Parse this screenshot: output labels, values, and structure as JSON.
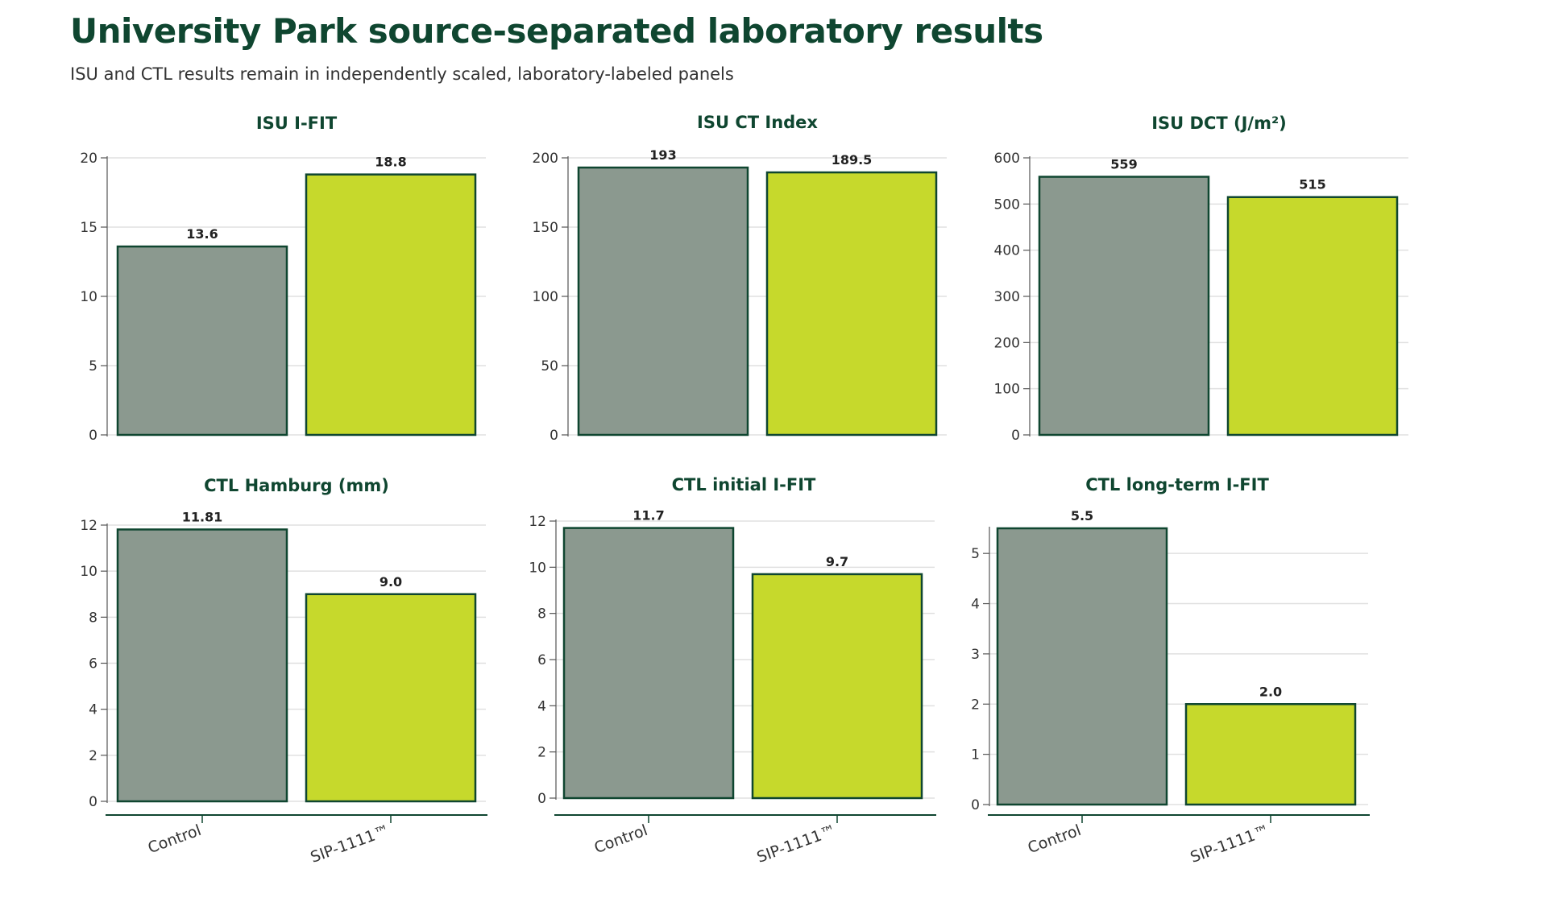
{
  "title": "University Park source-separated laboratory results",
  "subtitle": "ISU and CTL results remain in independently scaled, laboratory-labeled panels",
  "colors": {
    "control": "#8b998f",
    "sip": "#c6d92c",
    "outline": "#0f4630",
    "grid": "#e0e0e0",
    "title": "#0f4630"
  },
  "chart_data": [
    {
      "type": "bar",
      "title": "ISU I-FIT",
      "categories": [
        "Control",
        "SIP-1111™"
      ],
      "values": [
        13.6,
        18.8
      ],
      "value_labels": [
        "13.6",
        "18.8"
      ],
      "ylim": [
        0,
        20
      ],
      "yticks": [
        0,
        5,
        10,
        15,
        20
      ],
      "grid": true
    },
    {
      "type": "bar",
      "title": "ISU CT Index",
      "categories": [
        "Control",
        "SIP-1111™"
      ],
      "values": [
        193,
        189.5
      ],
      "value_labels": [
        "193",
        "189.5"
      ],
      "ylim": [
        0,
        200
      ],
      "yticks": [
        0,
        50,
        100,
        150,
        200
      ],
      "grid": true
    },
    {
      "type": "bar",
      "title": "ISU DCT (J/m²)",
      "categories": [
        "Control",
        "SIP-1111™"
      ],
      "values": [
        559,
        515
      ],
      "value_labels": [
        "559",
        "515"
      ],
      "ylim": [
        0,
        600
      ],
      "yticks": [
        0,
        100,
        200,
        300,
        400,
        500,
        600
      ],
      "grid": true
    },
    {
      "type": "bar",
      "title": "CTL Hamburg (mm)",
      "categories": [
        "Control",
        "SIP-1111™"
      ],
      "values": [
        11.81,
        9.0
      ],
      "value_labels": [
        "11.81",
        "9.0"
      ],
      "ylim": [
        0,
        12
      ],
      "yticks": [
        0,
        2,
        4,
        6,
        8,
        10,
        12
      ],
      "grid": true
    },
    {
      "type": "bar",
      "title": "CTL initial I-FIT",
      "categories": [
        "Control",
        "SIP-1111™"
      ],
      "values": [
        11.7,
        9.7
      ],
      "value_labels": [
        "11.7",
        "9.7"
      ],
      "ylim": [
        0,
        12
      ],
      "yticks": [
        0,
        2,
        4,
        6,
        8,
        10,
        12
      ],
      "grid": true
    },
    {
      "type": "bar",
      "title": "CTL long-term I-FIT",
      "categories": [
        "Control",
        "SIP-1111™"
      ],
      "values": [
        5.5,
        2.0
      ],
      "value_labels": [
        "5.5",
        "2.0"
      ],
      "ylim": [
        0,
        5.5
      ],
      "yticks": [
        0,
        1,
        2,
        3,
        4,
        5
      ],
      "grid": true
    }
  ]
}
